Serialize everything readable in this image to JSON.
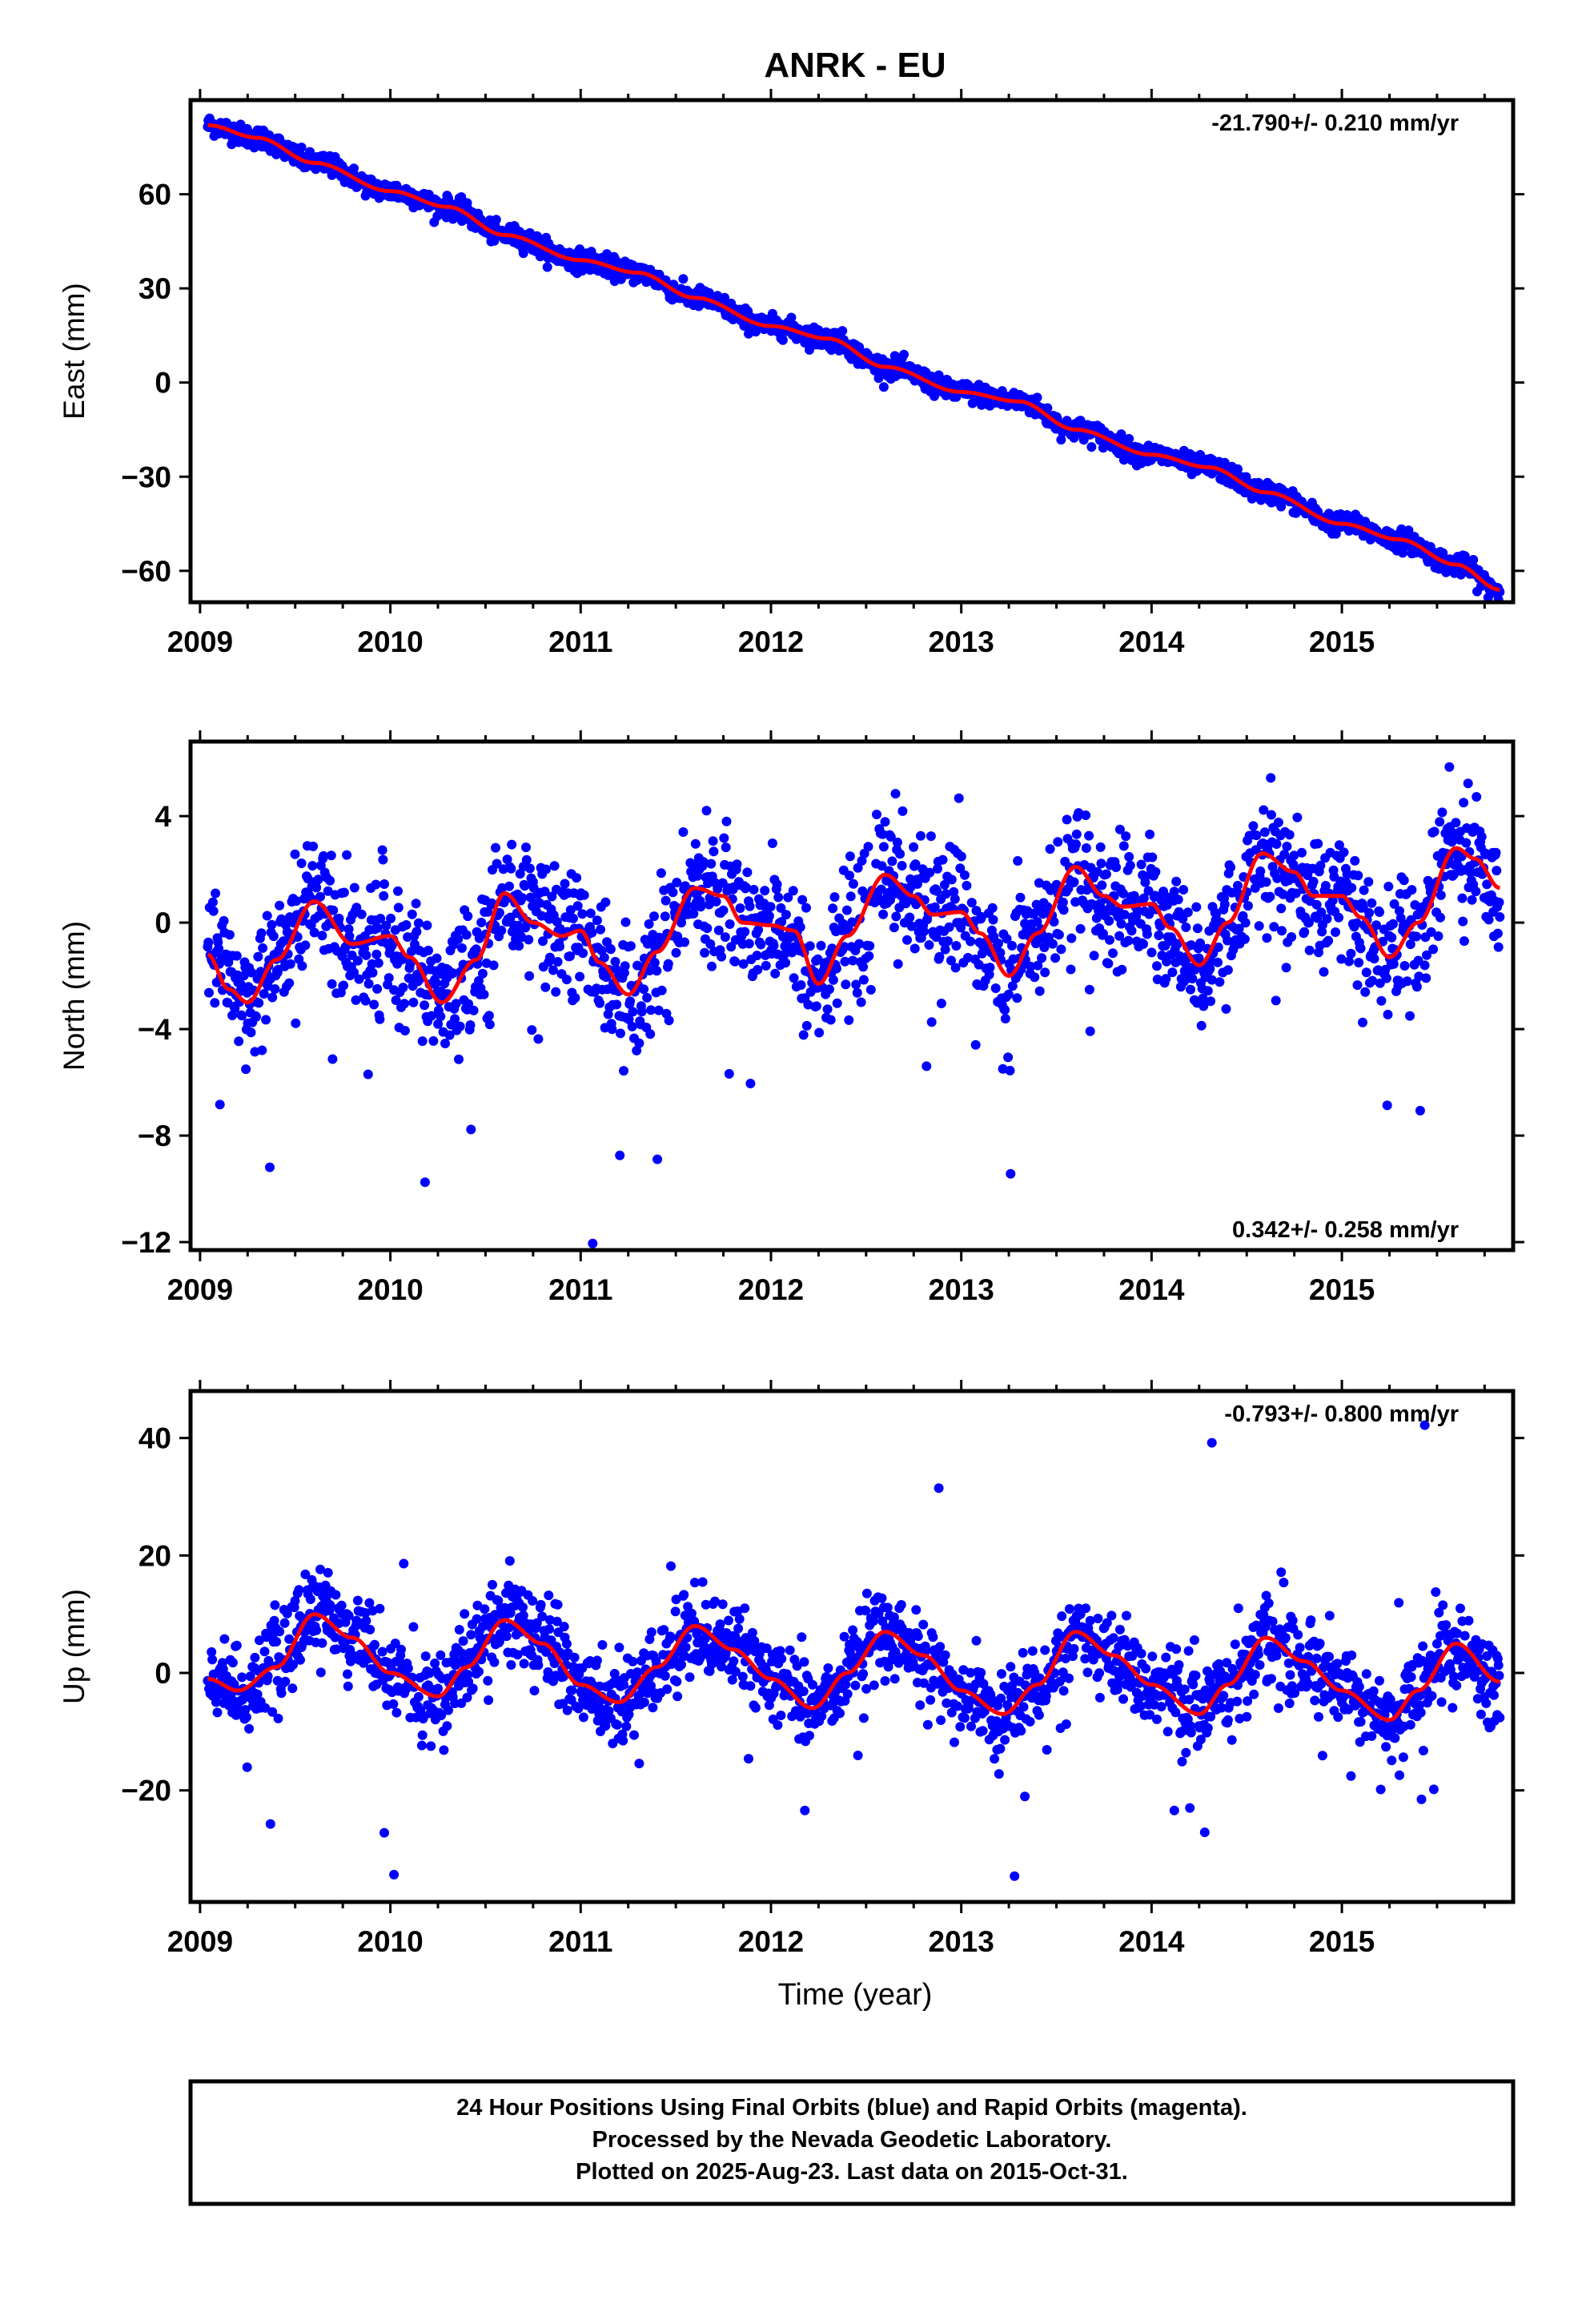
{
  "title": "ANRK - EU",
  "xlabel": "Time (year)",
  "footer": [
    "24 Hour Positions Using Final Orbits (blue) and Rapid Orbits (magenta).",
    "Processed by the Nevada Geodetic Laboratory.",
    "Plotted on 2025-Aug-23. Last data on 2015-Oct-31."
  ],
  "colors": {
    "points": "#0000ff",
    "fit": "#ff0000",
    "frame": "#000000"
  },
  "chart_data": [
    {
      "type": "scatter",
      "ylabel": "East (mm)",
      "rate": "-21.790+/- 0.210 mm/yr",
      "rate_position": "top-right",
      "xlim": [
        2008.95,
        2015.9
      ],
      "ylim": [
        -70,
        90
      ],
      "xticks": [
        2009,
        2010,
        2011,
        2012,
        2013,
        2014,
        2015
      ],
      "yticks": [
        -60,
        -30,
        0,
        30,
        60
      ],
      "fit": {
        "x": [
          2009.04,
          2009.3,
          2009.6,
          2010.0,
          2010.3,
          2010.6,
          2011.0,
          2011.3,
          2011.6,
          2012.0,
          2012.3,
          2012.6,
          2013.0,
          2013.3,
          2013.6,
          2014.0,
          2014.3,
          2014.6,
          2015.0,
          2015.3,
          2015.6,
          2015.83
        ],
        "y": [
          82,
          78,
          70,
          61,
          56,
          47,
          39,
          35,
          27,
          18,
          14,
          5,
          -3,
          -6,
          -15,
          -23,
          -27,
          -35,
          -45,
          -50,
          -58,
          -66
        ]
      },
      "points_model": "rate-with-seasonal",
      "points_noise_mm": 1.6
    },
    {
      "type": "scatter",
      "ylabel": "North (mm)",
      "rate": "0.342+/- 0.258 mm/yr",
      "rate_position": "bottom-right",
      "xlim": [
        2008.95,
        2015.9
      ],
      "ylim": [
        -12.3,
        6.8
      ],
      "xticks": [
        2009,
        2010,
        2011,
        2012,
        2013,
        2014,
        2015
      ],
      "yticks": [
        -12,
        -8,
        -4,
        0,
        4
      ],
      "fit": {
        "x": [
          2009.04,
          2009.15,
          2009.25,
          2009.4,
          2009.6,
          2009.8,
          2010.0,
          2010.1,
          2010.27,
          2010.45,
          2010.6,
          2010.75,
          2010.9,
          2011.0,
          2011.1,
          2011.25,
          2011.4,
          2011.6,
          2011.75,
          2011.85,
          2012.0,
          2012.12,
          2012.25,
          2012.4,
          2012.6,
          2012.75,
          2012.85,
          2013.0,
          2013.1,
          2013.25,
          2013.4,
          2013.6,
          2013.75,
          2013.85,
          2014.0,
          2014.1,
          2014.25,
          2014.4,
          2014.58,
          2014.75,
          2014.85,
          2015.0,
          2015.1,
          2015.25,
          2015.4,
          2015.6,
          2015.7,
          2015.83
        ],
        "y": [
          -1.2,
          -2.5,
          -3.0,
          -1.4,
          0.8,
          -0.8,
          -0.5,
          -1.3,
          -3.0,
          -1.4,
          1.1,
          0.0,
          -0.5,
          -0.3,
          -1.5,
          -2.7,
          -1.1,
          1.3,
          1.0,
          0.0,
          -0.1,
          -0.3,
          -2.3,
          -0.5,
          1.8,
          1.0,
          0.3,
          0.4,
          -0.4,
          -2.0,
          -0.4,
          2.1,
          1.0,
          0.6,
          0.7,
          -0.2,
          -1.6,
          0.0,
          2.6,
          1.9,
          1.0,
          1.0,
          0.2,
          -1.3,
          0.0,
          2.8,
          2.4,
          1.3
        ]
      },
      "points_noise_mm": 1.2
    },
    {
      "type": "scatter",
      "ylabel": "Up (mm)",
      "rate": "-0.793+/- 0.800 mm/yr",
      "rate_position": "top-right",
      "xlim": [
        2008.95,
        2015.9
      ],
      "ylim": [
        -39,
        48
      ],
      "xticks": [
        2009,
        2010,
        2011,
        2012,
        2013,
        2014,
        2015
      ],
      "yticks": [
        -20,
        0,
        20,
        40
      ],
      "fit": {
        "x": [
          2009.04,
          2009.2,
          2009.4,
          2009.6,
          2009.8,
          2010.0,
          2010.25,
          2010.4,
          2010.6,
          2010.8,
          2011.0,
          2011.2,
          2011.4,
          2011.6,
          2011.8,
          2012.0,
          2012.22,
          2012.4,
          2012.6,
          2012.8,
          2013.0,
          2013.22,
          2013.4,
          2013.6,
          2013.8,
          2014.0,
          2014.25,
          2014.4,
          2014.6,
          2014.8,
          2015.0,
          2015.25,
          2015.4,
          2015.6,
          2015.83
        ],
        "y": [
          -1,
          -3,
          1,
          10,
          6,
          0,
          -4,
          1,
          9,
          5,
          -2,
          -5,
          1,
          8,
          4,
          -1,
          -6,
          0,
          7,
          3,
          -3,
          -7,
          -2,
          7,
          3,
          -2,
          -7,
          -2,
          6,
          2,
          -3,
          -8,
          -3,
          5,
          -1.5
        ]
      },
      "points_noise_mm": 3.5
    }
  ]
}
